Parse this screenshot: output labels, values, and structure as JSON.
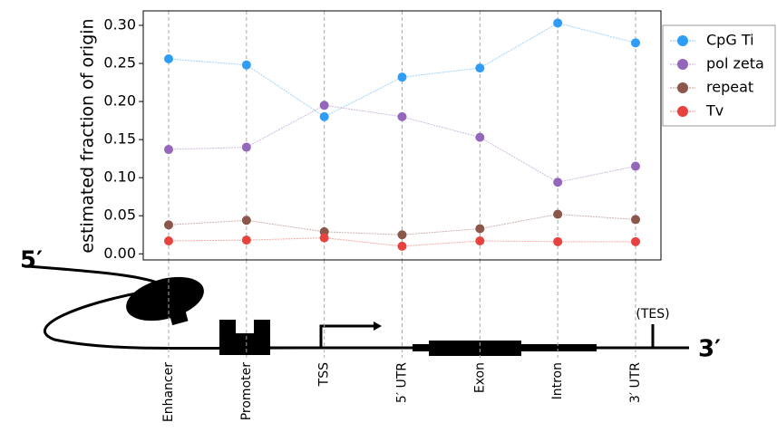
{
  "chart_data": {
    "type": "line",
    "ylabel": "estimated fraction of origin",
    "categories": [
      "Enhancer",
      "Promoter",
      "TSS",
      "5′ UTR",
      "Exon",
      "Intron",
      "3′ UTR"
    ],
    "series": [
      {
        "name": "CpG Ti",
        "color": "#2e9df7",
        "values": [
          0.256,
          0.248,
          0.18,
          0.232,
          0.244,
          0.303,
          0.277
        ]
      },
      {
        "name": "pol zeta",
        "color": "#9467bd",
        "values": [
          0.137,
          0.14,
          0.195,
          0.18,
          0.153,
          0.094,
          0.115
        ]
      },
      {
        "name": "repeat",
        "color": "#8c564b",
        "values": [
          0.038,
          0.044,
          0.029,
          0.025,
          0.033,
          0.052,
          0.045
        ]
      },
      {
        "name": "Tv",
        "color": "#e8423f",
        "values": [
          0.017,
          0.018,
          0.021,
          0.01,
          0.017,
          0.016,
          0.016
        ]
      }
    ],
    "ylim": [
      -0.008,
      0.319
    ],
    "yticks": [
      {
        "value": 0,
        "label": "0.00"
      },
      0.05,
      {
        "value": 0.1,
        "label": "0.10"
      },
      0.15,
      {
        "value": 0.2,
        "label": "0.20"
      },
      0.25,
      {
        "value": 0.3,
        "label": "0.30"
      }
    ],
    "grid": true,
    "legend": "outside-right",
    "annotations": [
      "5′",
      "3′",
      "(TES)"
    ]
  }
}
